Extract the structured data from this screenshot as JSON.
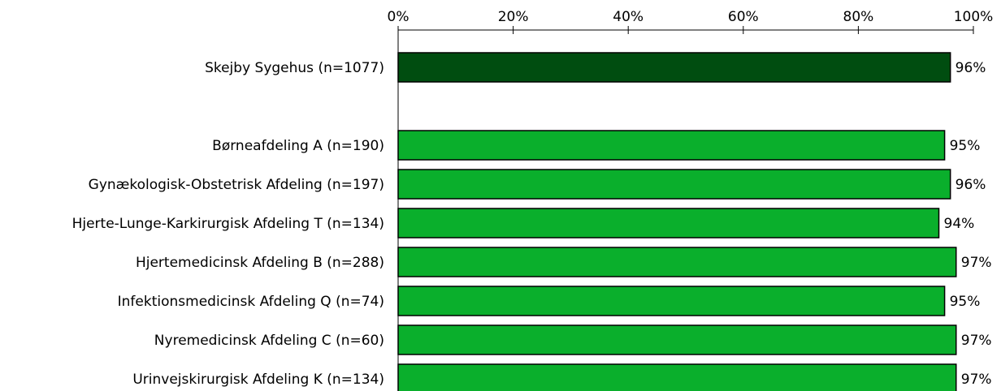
{
  "chart_data": {
    "type": "bar",
    "orientation": "horizontal",
    "title": "",
    "xlabel": "",
    "ylabel": "",
    "xlim": [
      0,
      100
    ],
    "x_ticks": [
      "0%",
      "20%",
      "40%",
      "60%",
      "80%",
      "100%"
    ],
    "x_axis_position": "top",
    "grid": false,
    "categories": [
      "Skejby Sygehus (n=1077)",
      "",
      "Børneafdeling A (n=190)",
      "Gynækologisk-Obstetrisk Afdeling (n=197)",
      "Hjerte-Lunge-Karkirurgisk Afdeling T (n=134)",
      "Hjertemedicinsk Afdeling B (n=288)",
      "Infektionsmedicinsk Afdeling Q (n=74)",
      "Nyremedicinsk Afdeling C (n=60)",
      "Urinvejskirurgisk Afdeling K (n=134)"
    ],
    "values": [
      96,
      null,
      95,
      96,
      94,
      97,
      95,
      97,
      97
    ],
    "value_labels": [
      "96%",
      "",
      "95%",
      "96%",
      "94%",
      "97%",
      "95%",
      "97%",
      "97%"
    ],
    "colors": [
      "#004d10",
      null,
      "#0aaf2c",
      "#0aaf2c",
      "#0aaf2c",
      "#0aaf2c",
      "#0aaf2c",
      "#0aaf2c",
      "#0aaf2c"
    ]
  }
}
